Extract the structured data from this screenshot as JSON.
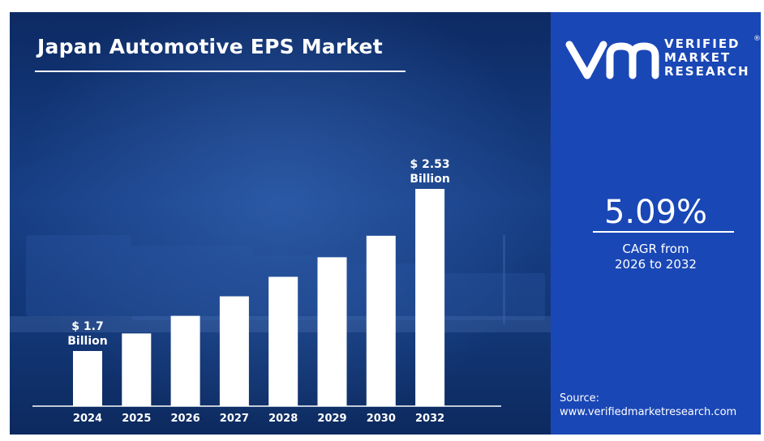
{
  "title": "Japan Automotive EPS Market",
  "brand": {
    "line1": "VERIFIED",
    "line2": "MARKET",
    "line3": "RESEARCH",
    "registered": "®"
  },
  "cagr": {
    "value": "5.09%",
    "caption_line1": "CAGR from",
    "caption_line2": "2026 to 2032"
  },
  "source": {
    "label": "Source:",
    "url": "www.verifiedmarketresearch.com"
  },
  "colors": {
    "panel_blue": "#1a47b6",
    "bar": "#ffffff"
  },
  "chart_data": {
    "type": "bar",
    "categories": [
      "2024",
      "2025",
      "2026",
      "2027",
      "2028",
      "2029",
      "2030",
      "2032"
    ],
    "values": [
      1.7,
      1.79,
      1.88,
      1.98,
      2.08,
      2.18,
      2.29,
      2.53
    ],
    "unit": "Billion",
    "data_labels": [
      {
        "index": 0,
        "line1": "$ 1.7",
        "line2": "Billion"
      },
      {
        "index": 7,
        "line1": "$ 2.53",
        "line2": "Billion"
      }
    ]
  }
}
